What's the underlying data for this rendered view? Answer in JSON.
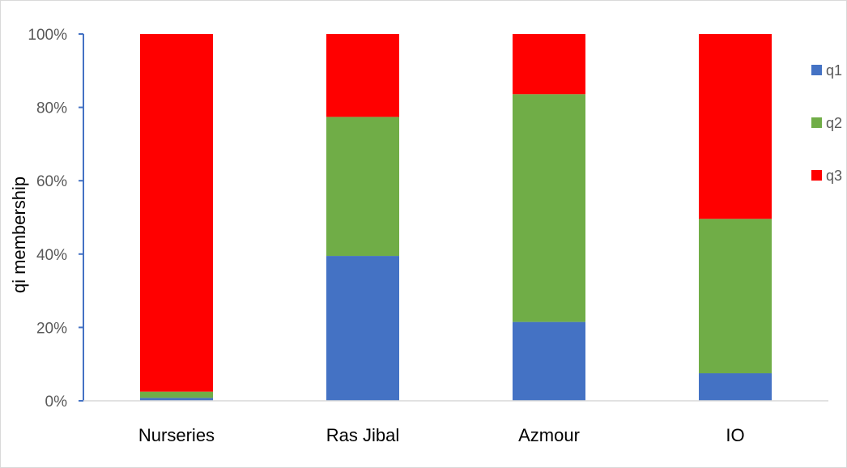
{
  "chart_data": {
    "type": "bar",
    "stacked": true,
    "percent": true,
    "title": "",
    "xlabel": "",
    "ylabel": "qi membership",
    "ylim": [
      0,
      100
    ],
    "yticks": [
      "0%",
      "20%",
      "40%",
      "60%",
      "80%",
      "100%"
    ],
    "categories": [
      "Nurseries",
      "Ras Jibal",
      "Azmour",
      "IO"
    ],
    "series": [
      {
        "name": "q1",
        "color": "#4472C4",
        "values": [
          0.8,
          39.5,
          21.5,
          7.5
        ]
      },
      {
        "name": "q2",
        "color": "#70AD47",
        "values": [
          1.7,
          37.9,
          62.1,
          42.1
        ]
      },
      {
        "name": "q3",
        "color": "#FF0000",
        "values": [
          97.5,
          22.6,
          16.4,
          50.4
        ]
      }
    ],
    "legend_position": "right",
    "grid": false,
    "axis_color": "#4472C4"
  }
}
